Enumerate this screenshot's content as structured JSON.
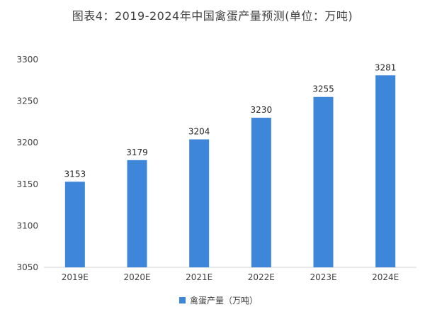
{
  "chart_data": {
    "type": "bar",
    "title": "图表4：2019-2024年中国禽蛋产量预测(单位：万吨)",
    "categories": [
      "2019E",
      "2020E",
      "2021E",
      "2022E",
      "2023E",
      "2024E"
    ],
    "values": [
      3153,
      3179,
      3204,
      3230,
      3255,
      3281
    ],
    "ylim": [
      3050,
      3300
    ],
    "yticks": [
      3050,
      3100,
      3150,
      3200,
      3250,
      3300
    ],
    "series": [
      {
        "name": "禽蛋产量（万吨）",
        "values": [
          3153,
          3179,
          3204,
          3230,
          3255,
          3281
        ]
      }
    ],
    "bar_color": "#3D86D9",
    "legend_position": "bottom",
    "grid": false
  }
}
